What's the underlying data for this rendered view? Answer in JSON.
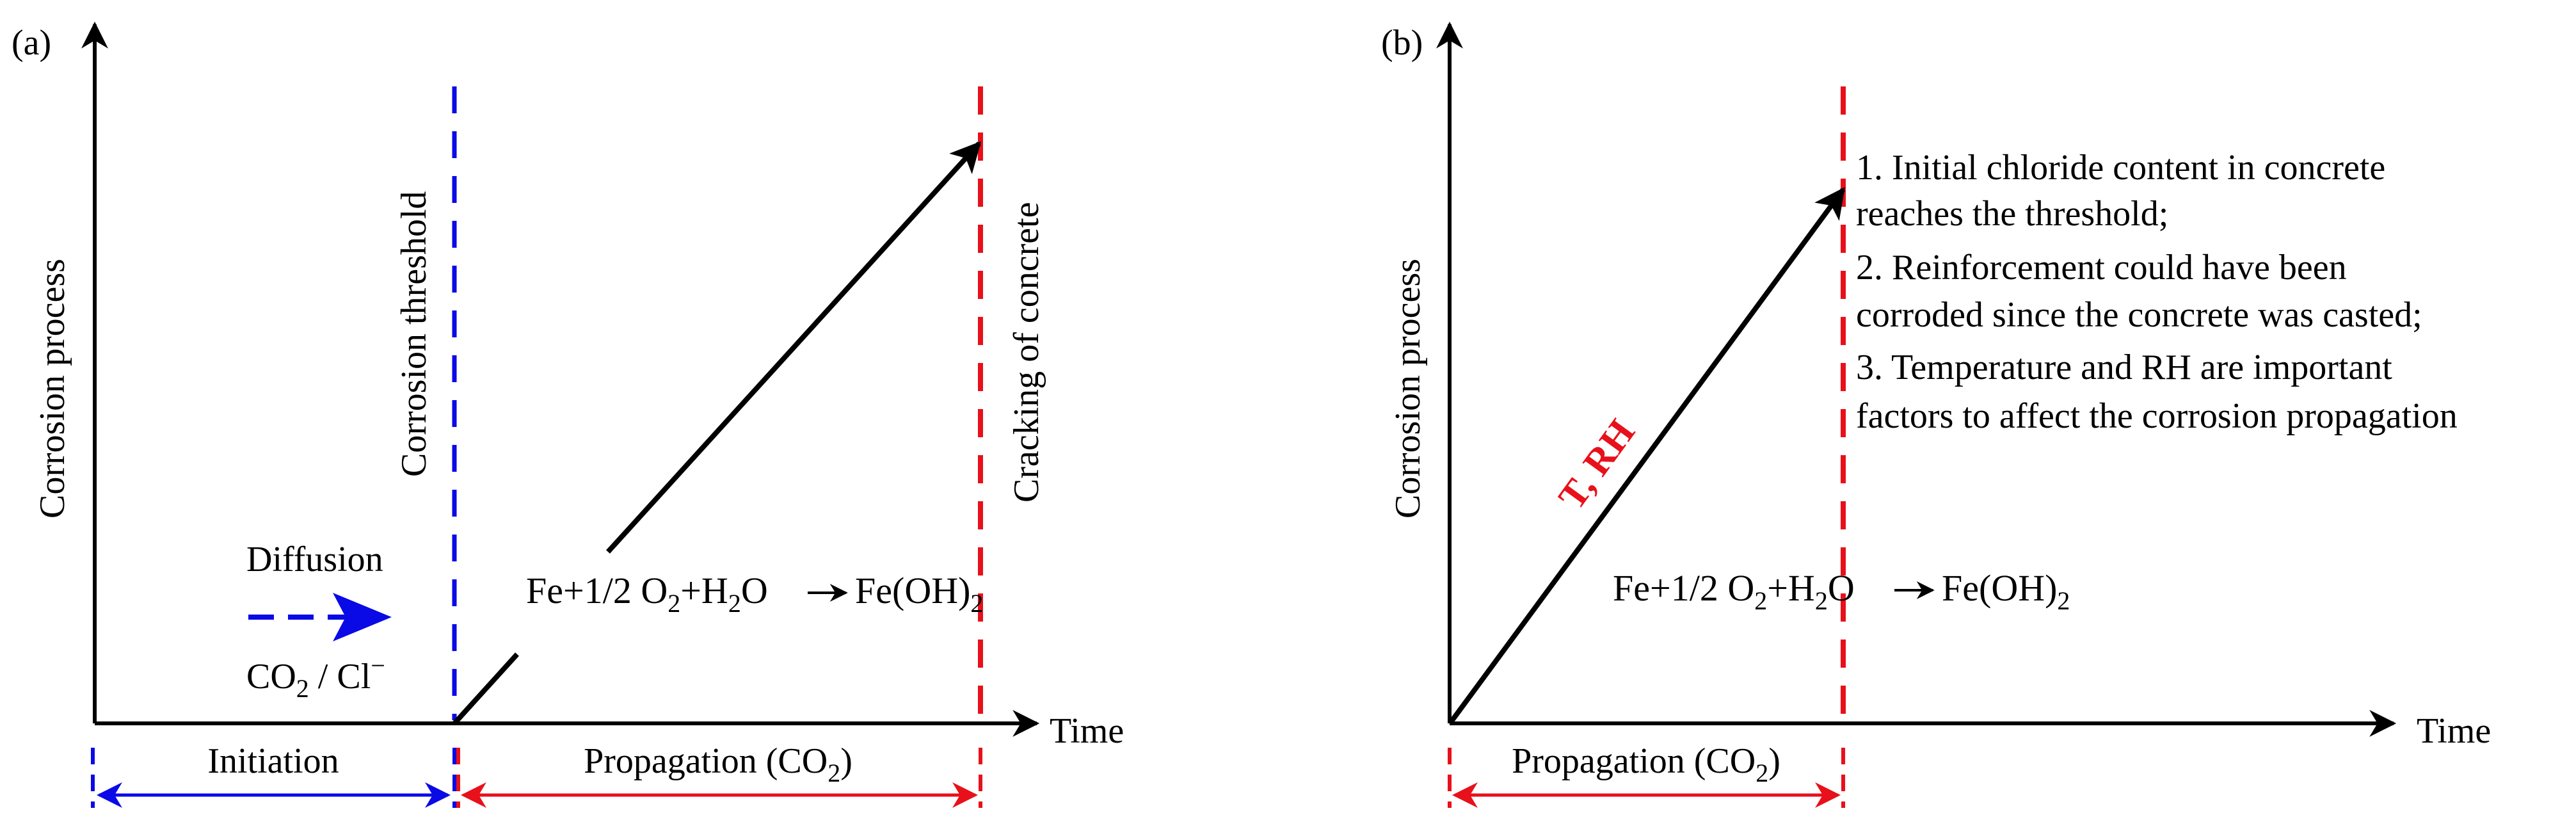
{
  "colors": {
    "axis": "#000000",
    "initiation": "#0a0ae6",
    "propagation": "#e8101a"
  },
  "panel_a": {
    "tag": "(a)",
    "y_axis_label": "Corrosion process",
    "x_axis_label": "Time",
    "threshold_label": "Corrosion threshold",
    "cracking_label": "Cracking of concrete",
    "diffusion_label": "Diffusion",
    "species": {
      "main": "CO",
      "sub": "2",
      "rest": " / Cl",
      "sup": "−"
    },
    "reaction": {
      "p1": "Fe+1/2 O",
      "s1": "2",
      "p2": "+H",
      "s2": "2",
      "p3": "O",
      "p4": "Fe(OH)",
      "s3": "2"
    },
    "initiation_label": "Initiation",
    "propagation_label": {
      "main": "Propagation (CO",
      "sub": "2",
      "end": ")"
    }
  },
  "panel_b": {
    "tag": "(b)",
    "y_axis_label": "Corrosion process",
    "x_axis_label": "Time",
    "slope_label": "T, RH",
    "notes": [
      "1. Initial chloride content in concrete",
      " reaches the threshold;",
      "2. Reinforcement could have been",
      "corroded since the concrete was casted;",
      "3. Temperature and RH are important",
      "factors to affect the corrosion propagation"
    ],
    "reaction": {
      "p1": "Fe+1/2 O",
      "s1": "2",
      "p2": "+H",
      "s2": "2",
      "p3": "O",
      "p4": "Fe(OH)",
      "s3": "2"
    },
    "propagation_label": {
      "main": "Propagation (CO",
      "sub": "2",
      "end": ")"
    }
  }
}
